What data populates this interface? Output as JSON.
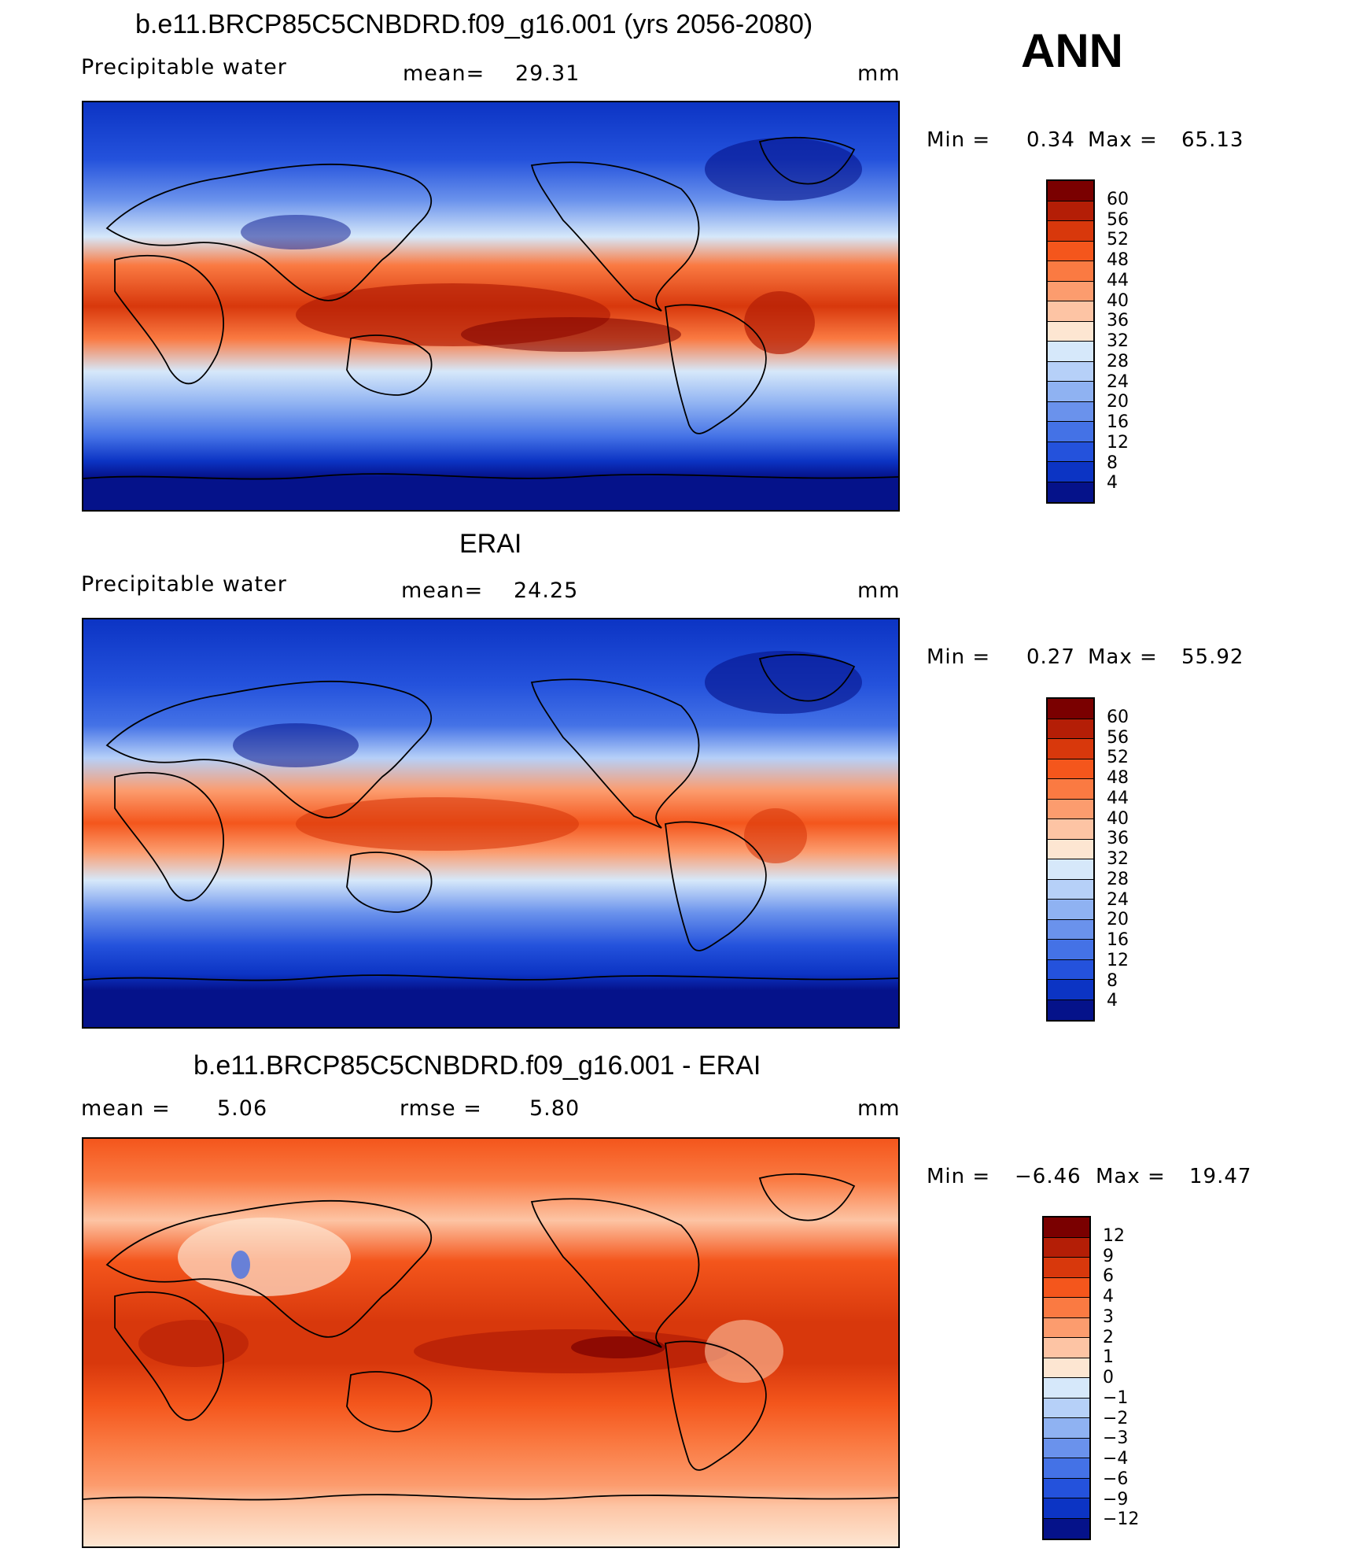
{
  "season": "ANN",
  "panels": [
    {
      "title": "b.e11.BRCP85C5CNBDRD.f09_g16.001 (yrs 2056-2080)",
      "variable": "Precipitable water",
      "mean_label": "mean=",
      "mean_value": "29.31",
      "units": "mm",
      "min_label": "Min =",
      "min_value": "0.34",
      "max_label": "Max =",
      "max_value": "65.13",
      "colorbar_labels": [
        "60",
        "56",
        "52",
        "48",
        "44",
        "40",
        "36",
        "32",
        "28",
        "24",
        "20",
        "16",
        "12",
        "8",
        "4"
      ],
      "colorbar_colors": [
        "#7a0000",
        "#b41e06",
        "#d8380c",
        "#f4561c",
        "#fa7a42",
        "#fc9c6e",
        "#fdc4a4",
        "#fde6d2",
        "#d6e8fa",
        "#b6d0f8",
        "#8fb2f2",
        "#6a92ec",
        "#4472e6",
        "#2452dc",
        "#0c34c4",
        "#05128a"
      ]
    },
    {
      "title": "ERAI",
      "variable": "Precipitable water",
      "mean_label": "mean=",
      "mean_value": "24.25",
      "units": "mm",
      "min_label": "Min =",
      "min_value": "0.27",
      "max_label": "Max =",
      "max_value": "55.92",
      "colorbar_labels": [
        "60",
        "56",
        "52",
        "48",
        "44",
        "40",
        "36",
        "32",
        "28",
        "24",
        "20",
        "16",
        "12",
        "8",
        "4"
      ],
      "colorbar_colors": [
        "#7a0000",
        "#b41e06",
        "#d8380c",
        "#f4561c",
        "#fa7a42",
        "#fc9c6e",
        "#fdc4a4",
        "#fde6d2",
        "#d6e8fa",
        "#b6d0f8",
        "#8fb2f2",
        "#6a92ec",
        "#4472e6",
        "#2452dc",
        "#0c34c4",
        "#05128a"
      ]
    },
    {
      "title": "b.e11.BRCP85C5CNBDRD.f09_g16.001 - ERAI",
      "mean_label": "mean =",
      "mean_value": "5.06",
      "rmse_label": "rmse =",
      "rmse_value": "5.80",
      "units": "mm",
      "min_label": "Min =",
      "min_value": "−6.46",
      "max_label": "Max =",
      "max_value": "19.47",
      "colorbar_labels": [
        "12",
        "9",
        "6",
        "4",
        "3",
        "2",
        "1",
        "0",
        "−1",
        "−2",
        "−3",
        "−4",
        "−6",
        "−9",
        "−12"
      ],
      "colorbar_colors": [
        "#7a0000",
        "#b41e06",
        "#d8380c",
        "#f4561c",
        "#fa7a42",
        "#fc9c6e",
        "#fdc4a4",
        "#fde6d2",
        "#d6e8fa",
        "#b6d0f8",
        "#8fb2f2",
        "#6a92ec",
        "#4472e6",
        "#2452dc",
        "#0c34c4",
        "#05128a"
      ]
    }
  ]
}
